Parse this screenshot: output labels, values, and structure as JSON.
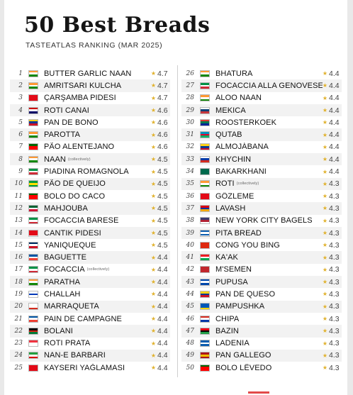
{
  "title": "50 Best Breads",
  "subtitle": "TASTEATLAS RANKING (MAR 2025)",
  "left_items": [
    {
      "rank": "1",
      "name": "BUTTER GARLIC NAAN",
      "note": "",
      "rating": "4.7",
      "flag": [
        "#ff9933",
        "#ffffff",
        "#138808"
      ]
    },
    {
      "rank": "2",
      "name": "AMRITSARI KULCHA",
      "note": "",
      "rating": "4.7",
      "flag": [
        "#ff9933",
        "#ffffff",
        "#138808"
      ]
    },
    {
      "rank": "3",
      "name": "ÇARŞAMBA PIDESI",
      "note": "",
      "rating": "4.7",
      "flag": [
        "#e30a17",
        "#e30a17",
        "#e30a17"
      ]
    },
    {
      "rank": "4",
      "name": "ROTI CANAI",
      "note": "",
      "rating": "4.6",
      "flag": [
        "#cc0001",
        "#ffffff",
        "#010066"
      ]
    },
    {
      "rank": "5",
      "name": "PAN DE BONO",
      "note": "",
      "rating": "4.6",
      "flag": [
        "#fcd116",
        "#003893",
        "#ce1126"
      ]
    },
    {
      "rank": "6",
      "name": "PAROTTA",
      "note": "",
      "rating": "4.6",
      "flag": [
        "#ff9933",
        "#ffffff",
        "#138808"
      ]
    },
    {
      "rank": "7",
      "name": "PÃO ALENTEJANO",
      "note": "",
      "rating": "4.6",
      "flag": [
        "#006600",
        "#ff0000",
        "#ff0000"
      ]
    },
    {
      "rank": "8",
      "name": "NAAN",
      "note": "(collectively)",
      "rating": "4.5",
      "flag": [
        "#ff9933",
        "#ffffff",
        "#138808"
      ]
    },
    {
      "rank": "9",
      "name": "PIADINA ROMAGNOLA",
      "note": "",
      "rating": "4.5",
      "flag": [
        "#009246",
        "#ffffff",
        "#ce2b37"
      ]
    },
    {
      "rank": "10",
      "name": "PÃO DE QUEIJO",
      "note": "",
      "rating": "4.5",
      "flag": [
        "#009c3b",
        "#ffdf00",
        "#009c3b"
      ]
    },
    {
      "rank": "11",
      "name": "BOLO DO CACO",
      "note": "",
      "rating": "4.5",
      "flag": [
        "#006600",
        "#ff0000",
        "#ff0000"
      ]
    },
    {
      "rank": "12",
      "name": "MAHJOUBA",
      "note": "",
      "rating": "4.5",
      "flag": [
        "#006233",
        "#ffffff",
        "#d21034"
      ]
    },
    {
      "rank": "13",
      "name": "FOCACCIA BARESE",
      "note": "",
      "rating": "4.5",
      "flag": [
        "#009246",
        "#ffffff",
        "#ce2b37"
      ]
    },
    {
      "rank": "14",
      "name": "CANTIK PIDESI",
      "note": "",
      "rating": "4.5",
      "flag": [
        "#e30a17",
        "#e30a17",
        "#e30a17"
      ]
    },
    {
      "rank": "15",
      "name": "YANIQUEQUE",
      "note": "",
      "rating": "4.5",
      "flag": [
        "#002d62",
        "#ffffff",
        "#ce1126"
      ]
    },
    {
      "rank": "16",
      "name": "BAGUETTE",
      "note": "",
      "rating": "4.4",
      "flag": [
        "#0055a4",
        "#ffffff",
        "#ef4135"
      ]
    },
    {
      "rank": "17",
      "name": "FOCACCIA",
      "note": "(collectively)",
      "rating": "4.4",
      "flag": [
        "#009246",
        "#ffffff",
        "#ce2b37"
      ]
    },
    {
      "rank": "18",
      "name": "PARATHA",
      "note": "",
      "rating": "4.4",
      "flag": [
        "#ff9933",
        "#ffffff",
        "#138808"
      ]
    },
    {
      "rank": "19",
      "name": "CHALLAH",
      "note": "",
      "rating": "4.4",
      "flag": [
        "#ffffff",
        "#0038b8",
        "#ffffff"
      ]
    },
    {
      "rank": "20",
      "name": "MARRAQUETA",
      "note": "",
      "rating": "4.4",
      "flag": [
        "#ffffff",
        "#ffffff",
        "#d52b1e"
      ]
    },
    {
      "rank": "21",
      "name": "PAIN DE CAMPAGNE",
      "note": "",
      "rating": "4.4",
      "flag": [
        "#0055a4",
        "#ffffff",
        "#ef4135"
      ]
    },
    {
      "rank": "22",
      "name": "BOLANI",
      "note": "",
      "rating": "4.4",
      "flag": [
        "#000000",
        "#d32011",
        "#007a36"
      ]
    },
    {
      "rank": "23",
      "name": "ROTI PRATA",
      "note": "",
      "rating": "4.4",
      "flag": [
        "#ef3340",
        "#ffffff",
        "#ffffff"
      ]
    },
    {
      "rank": "24",
      "name": "NAN-E BARBARI",
      "note": "",
      "rating": "4.4",
      "flag": [
        "#239f40",
        "#ffffff",
        "#da0000"
      ]
    },
    {
      "rank": "25",
      "name": "KAYSERI YAĞLAMASI",
      "note": "",
      "rating": "4.4",
      "flag": [
        "#e30a17",
        "#e30a17",
        "#e30a17"
      ]
    }
  ],
  "right_items": [
    {
      "rank": "26",
      "name": "BHATURA",
      "note": "",
      "rating": "4.4",
      "flag": [
        "#ff9933",
        "#ffffff",
        "#138808"
      ]
    },
    {
      "rank": "27",
      "name": "FOCACCIA ALLA GENOVESE",
      "note": "",
      "rating": "4.4",
      "flag": [
        "#009246",
        "#ffffff",
        "#ce2b37"
      ]
    },
    {
      "rank": "28",
      "name": "ALOO NAAN",
      "note": "",
      "rating": "4.4",
      "flag": [
        "#ff9933",
        "#ffffff",
        "#138808"
      ]
    },
    {
      "rank": "29",
      "name": "MEKICA",
      "note": "",
      "rating": "4.4",
      "flag": [
        "#ffffff",
        "#0c4076",
        "#c6363c"
      ]
    },
    {
      "rank": "30",
      "name": "ROOSTERKOEK",
      "note": "",
      "rating": "4.4",
      "flag": [
        "#de3831",
        "#007a4d",
        "#002395"
      ]
    },
    {
      "rank": "31",
      "name": "QUTAB",
      "note": "",
      "rating": "4.4",
      "flag": [
        "#0092bc",
        "#e4002b",
        "#00af66"
      ]
    },
    {
      "rank": "32",
      "name": "ALMOJÁBANA",
      "note": "",
      "rating": "4.4",
      "flag": [
        "#fcd116",
        "#003893",
        "#ce1126"
      ]
    },
    {
      "rank": "33",
      "name": "KHYCHIN",
      "note": "",
      "rating": "4.4",
      "flag": [
        "#ffffff",
        "#0039a6",
        "#d52b1e"
      ]
    },
    {
      "rank": "34",
      "name": "BAKARKHANI",
      "note": "",
      "rating": "4.4",
      "flag": [
        "#006a4e",
        "#006a4e",
        "#006a4e"
      ]
    },
    {
      "rank": "35",
      "name": "ROTI",
      "note": "(collectively)",
      "rating": "4.3",
      "flag": [
        "#ff9933",
        "#ffffff",
        "#138808"
      ]
    },
    {
      "rank": "36",
      "name": "GÖZLEME",
      "note": "",
      "rating": "4.3",
      "flag": [
        "#e30a17",
        "#e30a17",
        "#e30a17"
      ]
    },
    {
      "rank": "37",
      "name": "LAVASH",
      "note": "",
      "rating": "4.3",
      "flag": [
        "#d90012",
        "#0033a0",
        "#f2a800"
      ]
    },
    {
      "rank": "38",
      "name": "NEW YORK CITY BAGELS",
      "note": "",
      "rating": "4.3",
      "flag": [
        "#3c3b6e",
        "#b22234",
        "#ffffff"
      ]
    },
    {
      "rank": "39",
      "name": "PITA BREAD",
      "note": "",
      "rating": "4.3",
      "flag": [
        "#0d5eaf",
        "#ffffff",
        "#0d5eaf"
      ]
    },
    {
      "rank": "40",
      "name": "CONG YOU BING",
      "note": "",
      "rating": "4.3",
      "flag": [
        "#de2910",
        "#de2910",
        "#de2910"
      ]
    },
    {
      "rank": "41",
      "name": "KA'AK",
      "note": "",
      "rating": "4.3",
      "flag": [
        "#ed1c24",
        "#ffffff",
        "#00a651"
      ]
    },
    {
      "rank": "42",
      "name": "M'SEMEN",
      "note": "",
      "rating": "4.3",
      "flag": [
        "#c1272d",
        "#c1272d",
        "#c1272d"
      ]
    },
    {
      "rank": "43",
      "name": "PUPUSA",
      "note": "",
      "rating": "4.3",
      "flag": [
        "#0047ab",
        "#ffffff",
        "#0047ab"
      ]
    },
    {
      "rank": "44",
      "name": "PAN DE QUESO",
      "note": "",
      "rating": "4.3",
      "flag": [
        "#fcd116",
        "#003893",
        "#ce1126"
      ]
    },
    {
      "rank": "45",
      "name": "PAMPUSHKA",
      "note": "",
      "rating": "4.3",
      "flag": [
        "#0057b7",
        "#0057b7",
        "#ffd700"
      ]
    },
    {
      "rank": "46",
      "name": "CHIPA",
      "note": "",
      "rating": "4.3",
      "flag": [
        "#d52b1e",
        "#ffffff",
        "#0038a8"
      ]
    },
    {
      "rank": "47",
      "name": "BAZIN",
      "note": "",
      "rating": "4.3",
      "flag": [
        "#e70013",
        "#000000",
        "#239e46"
      ]
    },
    {
      "rank": "48",
      "name": "LADENIA",
      "note": "",
      "rating": "4.3",
      "flag": [
        "#0d5eaf",
        "#ffffff",
        "#0d5eaf"
      ]
    },
    {
      "rank": "49",
      "name": "PAN GALLEGO",
      "note": "",
      "rating": "4.3",
      "flag": [
        "#aa151b",
        "#f1bf00",
        "#aa151b"
      ]
    },
    {
      "rank": "50",
      "name": "BOLO LÊVEDO",
      "note": "",
      "rating": "4.3",
      "flag": [
        "#006600",
        "#ff0000",
        "#ff0000"
      ]
    }
  ],
  "star_color": "#e0b12c"
}
